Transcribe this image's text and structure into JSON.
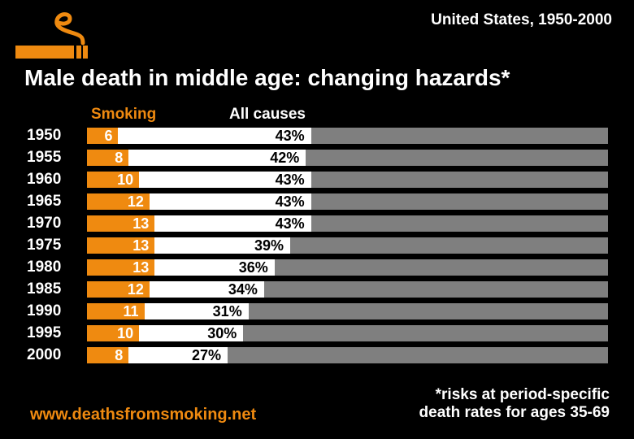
{
  "header": {
    "region_label": "United States, 1950-2000",
    "logo_icon": "cigarette-with-smoke-icon"
  },
  "title": "Male death in middle age: changing hazards*",
  "chart": {
    "smoking_header": "Smoking",
    "all_causes_header": "All causes"
  },
  "chart_data": {
    "type": "bar",
    "orientation": "horizontal",
    "title": "Male death in middle age: changing hazards*",
    "categories": [
      "1950",
      "1955",
      "1960",
      "1965",
      "1970",
      "1975",
      "1980",
      "1985",
      "1990",
      "1995",
      "2000"
    ],
    "series": [
      {
        "name": "Smoking",
        "values": [
          6,
          8,
          10,
          12,
          13,
          13,
          13,
          12,
          11,
          10,
          8
        ]
      },
      {
        "name": "All causes",
        "values": [
          43,
          42,
          43,
          43,
          43,
          39,
          36,
          34,
          31,
          30,
          27
        ]
      }
    ],
    "xlim": [
      0,
      100
    ],
    "legend_position": "column-headers-above-bars",
    "grid": false,
    "bar_colors": {
      "smoking": "#EF8A10",
      "all_causes": "#FFFFFF",
      "remainder": "#7F7F7F"
    }
  },
  "footer": {
    "website": "www.deathsfromsmoking.net",
    "footnote_line1": "*risks at period-specific",
    "footnote_line2": "death rates for ages 35-69"
  },
  "colors": {
    "background": "#000000",
    "accent_orange": "#EF8A10",
    "bar_gray": "#7F7F7F",
    "text_white": "#FFFFFF"
  }
}
